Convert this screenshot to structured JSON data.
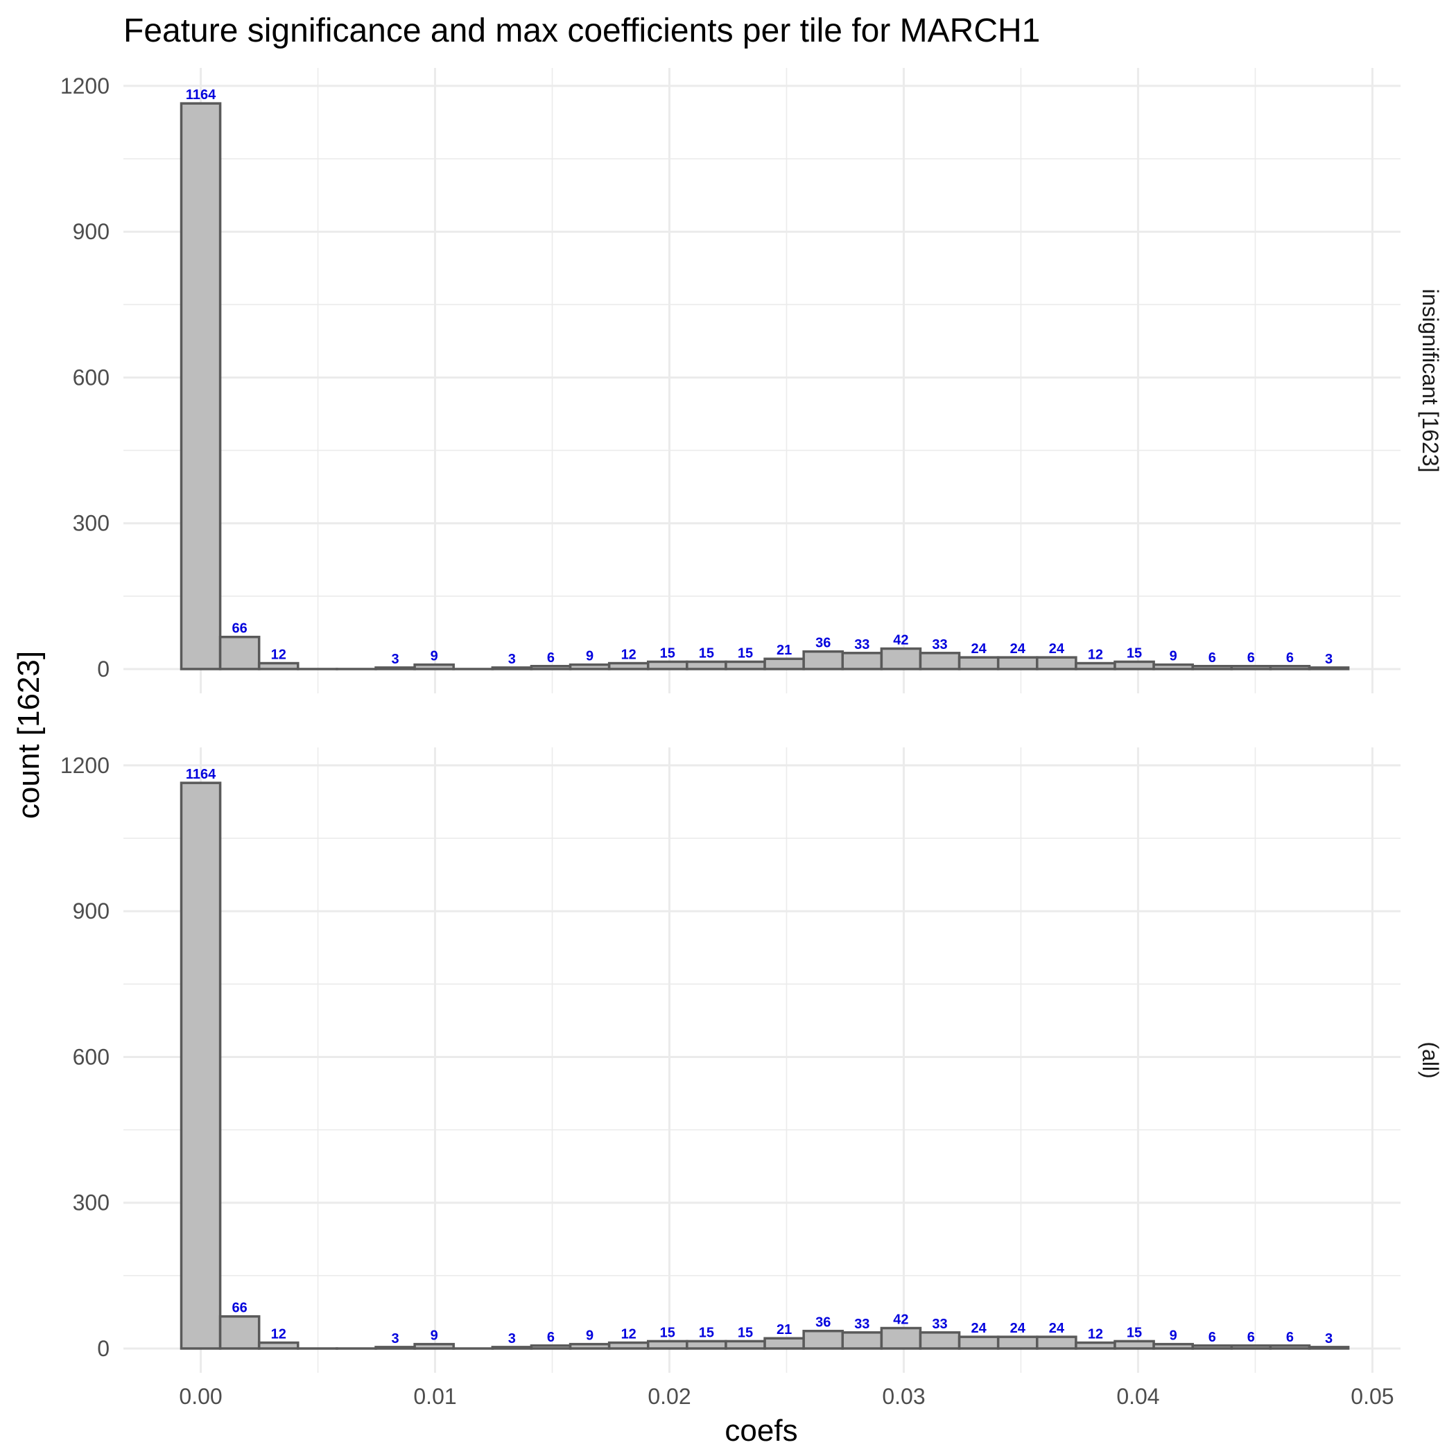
{
  "chart_data": {
    "type": "bar",
    "title": "Feature significance and max coefficients per tile for MARCH1",
    "xlabel": "coefs",
    "ylabel": "count [1623]",
    "x_ticks": [
      "0.00",
      "0.01",
      "0.02",
      "0.03",
      "0.04",
      "0.05"
    ],
    "x_tick_values": [
      0,
      0.01,
      0.02,
      0.03,
      0.04,
      0.05
    ],
    "y_ticks": [
      "0",
      "300",
      "600",
      "900",
      "1200"
    ],
    "y_tick_values": [
      0,
      300,
      600,
      900,
      1200
    ],
    "xlim": [
      -0.0033,
      0.0512
    ],
    "ylim": [
      -50,
      1237
    ],
    "bin_width": 0.00166,
    "bin_start": -0.00083,
    "grid": true,
    "bar_fill": "#bdbdbd",
    "bar_outline": "#5a5a5a",
    "label_color": "#0000dd",
    "values": [
      1164,
      66,
      12,
      0,
      0,
      3,
      9,
      0,
      3,
      6,
      9,
      12,
      15,
      15,
      15,
      21,
      36,
      33,
      42,
      33,
      24,
      24,
      24,
      12,
      15,
      9,
      6,
      6,
      6,
      3
    ],
    "panels": [
      {
        "label": "insignificant [1623]"
      },
      {
        "label": "(all)"
      }
    ]
  }
}
